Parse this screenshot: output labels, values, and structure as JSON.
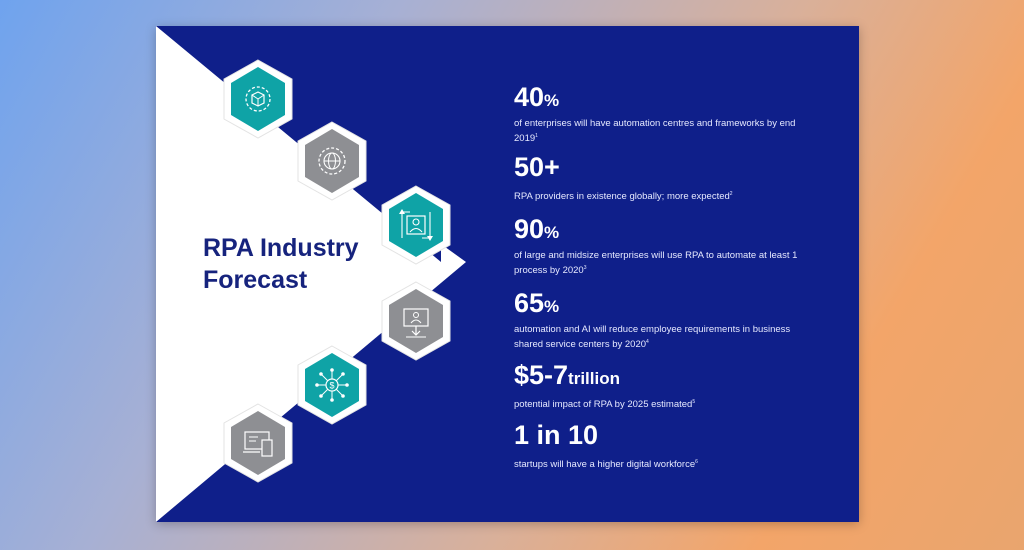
{
  "slide": {
    "title_line1": "RPA Industry",
    "title_line2": "Forecast",
    "colors": {
      "navy": "#0f1f8a",
      "teal": "#0fa3a6",
      "gray": "#8e8f93",
      "title": "#16237d"
    }
  },
  "icons": [
    {
      "name": "gear-cube-icon",
      "color": "teal"
    },
    {
      "name": "globe-gear-icon",
      "color": "gray"
    },
    {
      "name": "person-arrows-icon",
      "color": "teal"
    },
    {
      "name": "monitor-download-icon",
      "color": "gray"
    },
    {
      "name": "dollar-network-icon",
      "color": "teal"
    },
    {
      "name": "devices-icon",
      "color": "gray"
    }
  ],
  "stats": [
    {
      "value": "40",
      "suffix": "%",
      "desc": "of enterprises will have automation centres and frameworks by end 2019",
      "note": "1"
    },
    {
      "value": "50+",
      "suffix": "",
      "desc": "RPA providers in existence globally; more expected",
      "note": "2"
    },
    {
      "value": "90",
      "suffix": "%",
      "desc": "of large and midsize enterprises will use RPA to automate at least 1 process by 2020",
      "note": "3"
    },
    {
      "value": "65",
      "suffix": "%",
      "desc": "automation and AI will reduce employee requirements in business shared service centers by 2020",
      "note": "4"
    },
    {
      "value": "$5-7",
      "suffix": "trillion",
      "desc": "potential impact of RPA by 2025 estimated",
      "note": "5"
    },
    {
      "value": "1 in 10",
      "suffix": "",
      "desc": "startups will have a higher digital workforce",
      "note": "6"
    }
  ]
}
